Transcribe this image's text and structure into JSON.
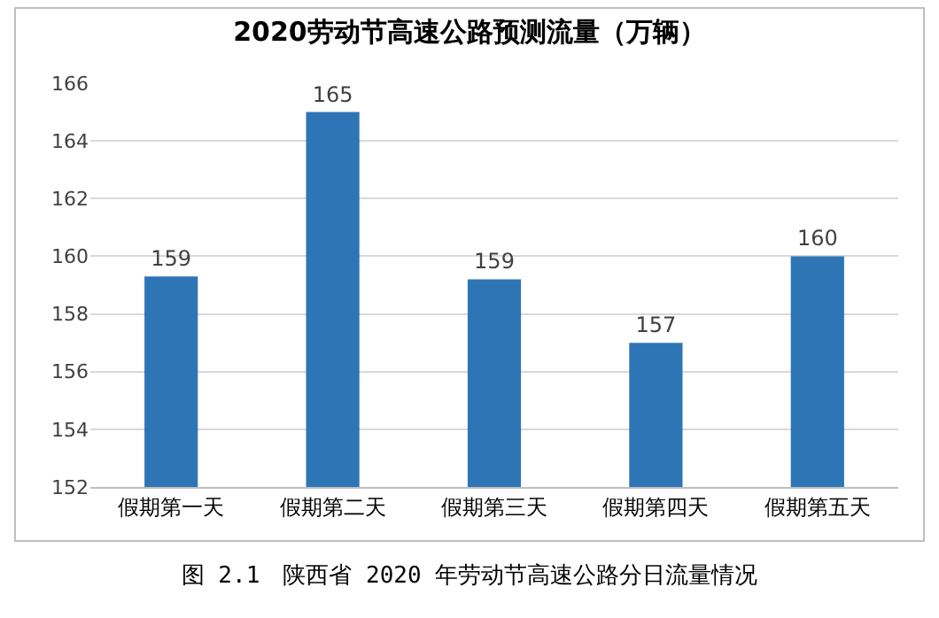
{
  "chart_data": {
    "type": "bar",
    "title": "2020劳动节高速公路预测流量（万辆）",
    "categories": [
      "假期第一天",
      "假期第二天",
      "假期第三天",
      "假期第四天",
      "假期第五天"
    ],
    "values": [
      159.3,
      165,
      159.2,
      157,
      160
    ],
    "value_labels": [
      "159",
      "165",
      "159",
      "157",
      "160"
    ],
    "color": "#2e75b6",
    "ylim": [
      152,
      166
    ],
    "yticks": [
      152,
      154,
      156,
      158,
      160,
      162,
      164,
      166
    ],
    "grid": "y",
    "annotations": [
      "图 2.1　陕西省 2020 年劳动节高速公路分日流量情况"
    ]
  }
}
